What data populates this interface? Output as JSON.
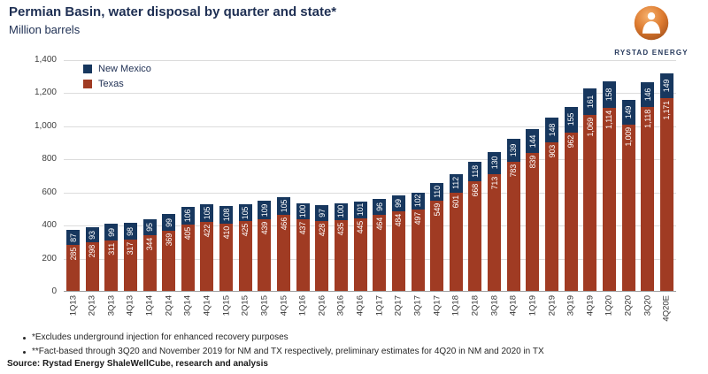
{
  "header": {
    "title": "Permian Basin, water disposal by quarter and state*",
    "subtitle": "Million barrels"
  },
  "logo": {
    "text": "RYSTAD ENERGY"
  },
  "legend": [
    {
      "label": "New Mexico",
      "color": "#17375E"
    },
    {
      "label": "Texas",
      "color": "#A03B23"
    }
  ],
  "chart_data": {
    "type": "bar",
    "stacked": true,
    "title": "Permian Basin, water disposal by quarter and state*",
    "xlabel": "",
    "ylabel": "Million barrels",
    "ylim": [
      0,
      1400
    ],
    "yticks": [
      0,
      200,
      400,
      600,
      800,
      1000,
      1200,
      1400
    ],
    "grid": true,
    "legend_position": "top-left",
    "categories": [
      "1Q13",
      "2Q13",
      "3Q13",
      "4Q13",
      "1Q14",
      "2Q14",
      "3Q14",
      "4Q14",
      "1Q15",
      "2Q15",
      "3Q15",
      "4Q15",
      "1Q16",
      "2Q16",
      "3Q16",
      "4Q16",
      "1Q17",
      "2Q17",
      "3Q17",
      "4Q17",
      "1Q18",
      "2Q18",
      "3Q18",
      "4Q18",
      "1Q19",
      "2Q19",
      "3Q19",
      "4Q19",
      "1Q20",
      "2Q20",
      "3Q20",
      "4Q20E"
    ],
    "series": [
      {
        "name": "Texas",
        "color": "#A03B23",
        "values": [
          285,
          298,
          311,
          317,
          344,
          369,
          405,
          422,
          410,
          425,
          439,
          466,
          437,
          428,
          435,
          445,
          464,
          484,
          497,
          549,
          601,
          668,
          713,
          783,
          839,
          903,
          962,
          1069,
          1114,
          1009,
          1118,
          1171
        ]
      },
      {
        "name": "New Mexico",
        "color": "#17375E",
        "values": [
          87,
          93,
          99,
          98,
          95,
          99,
          106,
          105,
          108,
          105,
          109,
          105,
          100,
          97,
          100,
          101,
          96,
          99,
          102,
          110,
          112,
          118,
          130,
          139,
          144,
          148,
          155,
          161,
          158,
          149,
          146,
          149
        ]
      }
    ]
  },
  "footnotes": [
    "*Excludes underground injection for enhanced recovery purposes",
    "**Fact-based through 3Q20 and November 2019 for NM and TX respectively, preliminary estimates for 4Q20 in NM and 2020 in TX"
  ],
  "source": "Source: Rystad Energy ShaleWellCube, research and analysis"
}
